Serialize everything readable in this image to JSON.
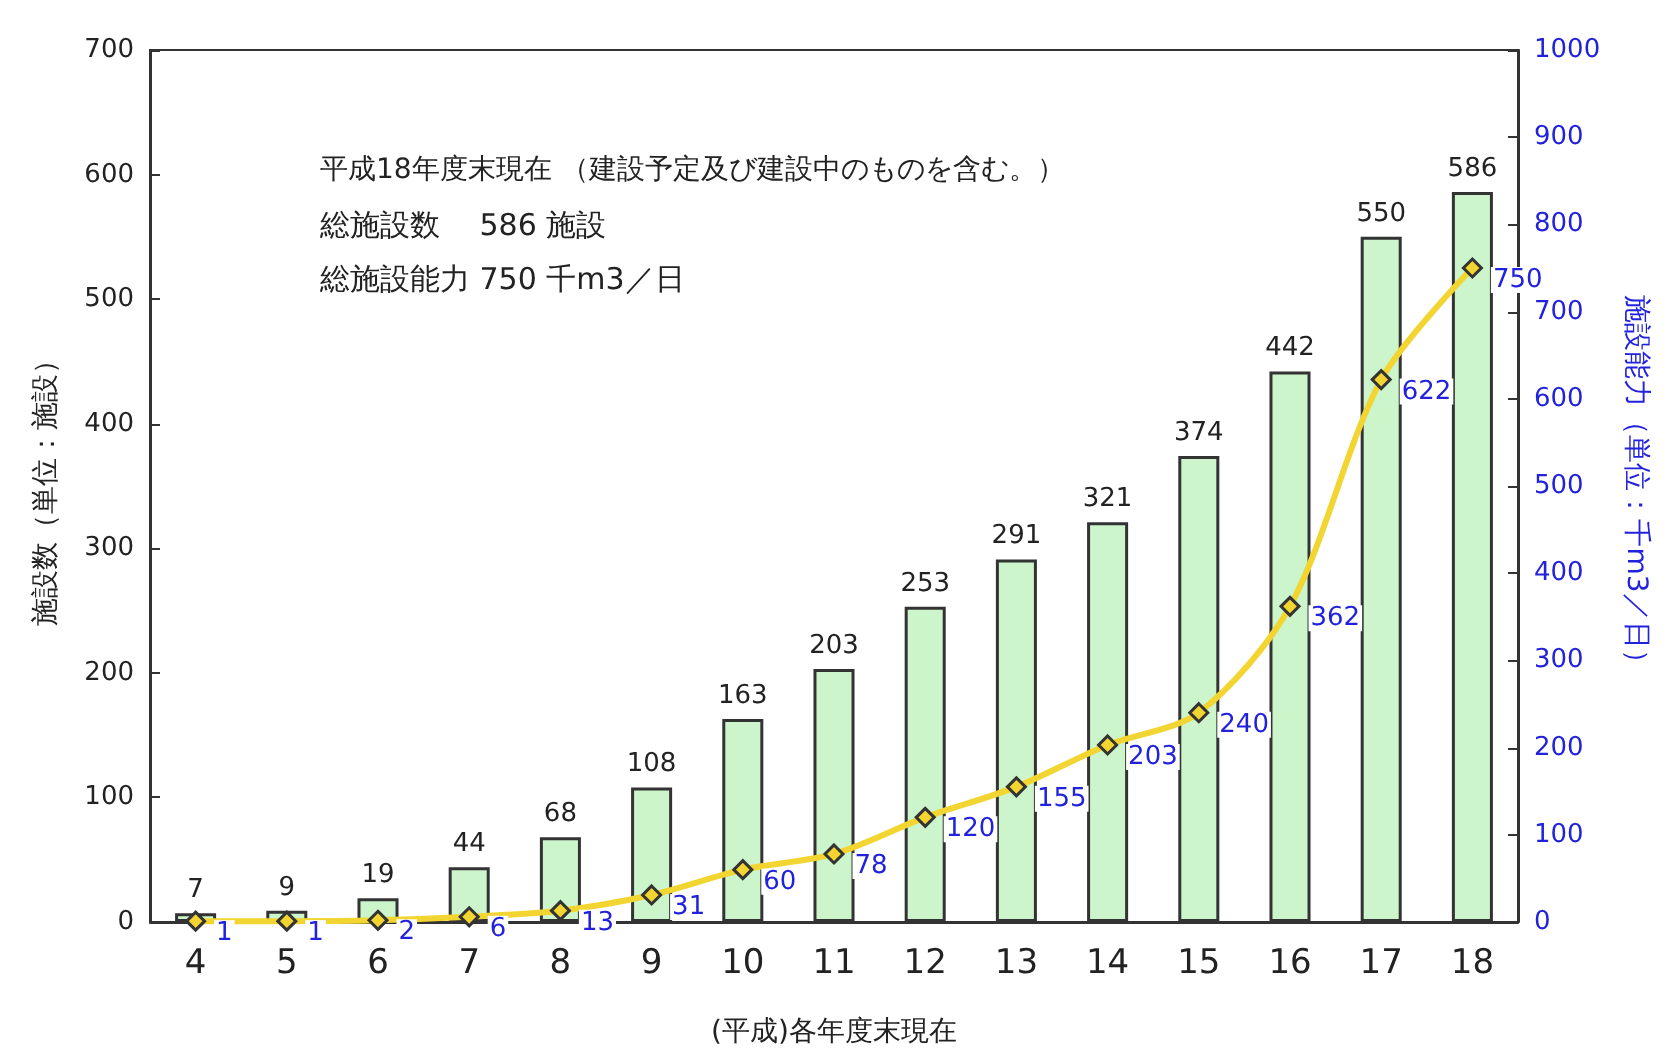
{
  "chart_data": {
    "type": "bar",
    "xlabel": "(平成)各年度末現在",
    "ylabel": "施設数（単位：施設）",
    "y2label": "施設能力（単位：千m3／日）",
    "categories": [
      "4",
      "5",
      "6",
      "7",
      "8",
      "9",
      "10",
      "11",
      "12",
      "13",
      "14",
      "15",
      "16",
      "17",
      "18"
    ],
    "series": [
      {
        "name": null,
        "color": "#ccf5cc",
        "values": [
          7,
          9,
          19,
          44,
          68,
          108,
          163,
          203,
          253,
          291,
          321,
          374,
          442,
          550,
          586
        ]
      },
      {
        "name": null,
        "type": "line",
        "axis": "y2",
        "color": "#f2d530",
        "marker": "diamond",
        "values": [
          1,
          1,
          2,
          6,
          13,
          31,
          60,
          78,
          120,
          155,
          203,
          240,
          362,
          622,
          750
        ]
      }
    ],
    "ylim": [
      0,
      700
    ],
    "yticks": [
      0,
      100,
      200,
      300,
      400,
      500,
      600,
      700
    ],
    "y2lim": [
      0,
      1000
    ],
    "y2ticks": [
      0,
      100,
      200,
      300,
      400,
      500,
      600,
      700,
      800,
      900,
      1000
    ],
    "data_labels": true,
    "grid": false,
    "annotations": [
      "平成18年度末現在 （建設予定及び建設中のものを含む。）",
      "総施設数　 586 施設",
      "総施設能力 750 千m3／日"
    ]
  }
}
